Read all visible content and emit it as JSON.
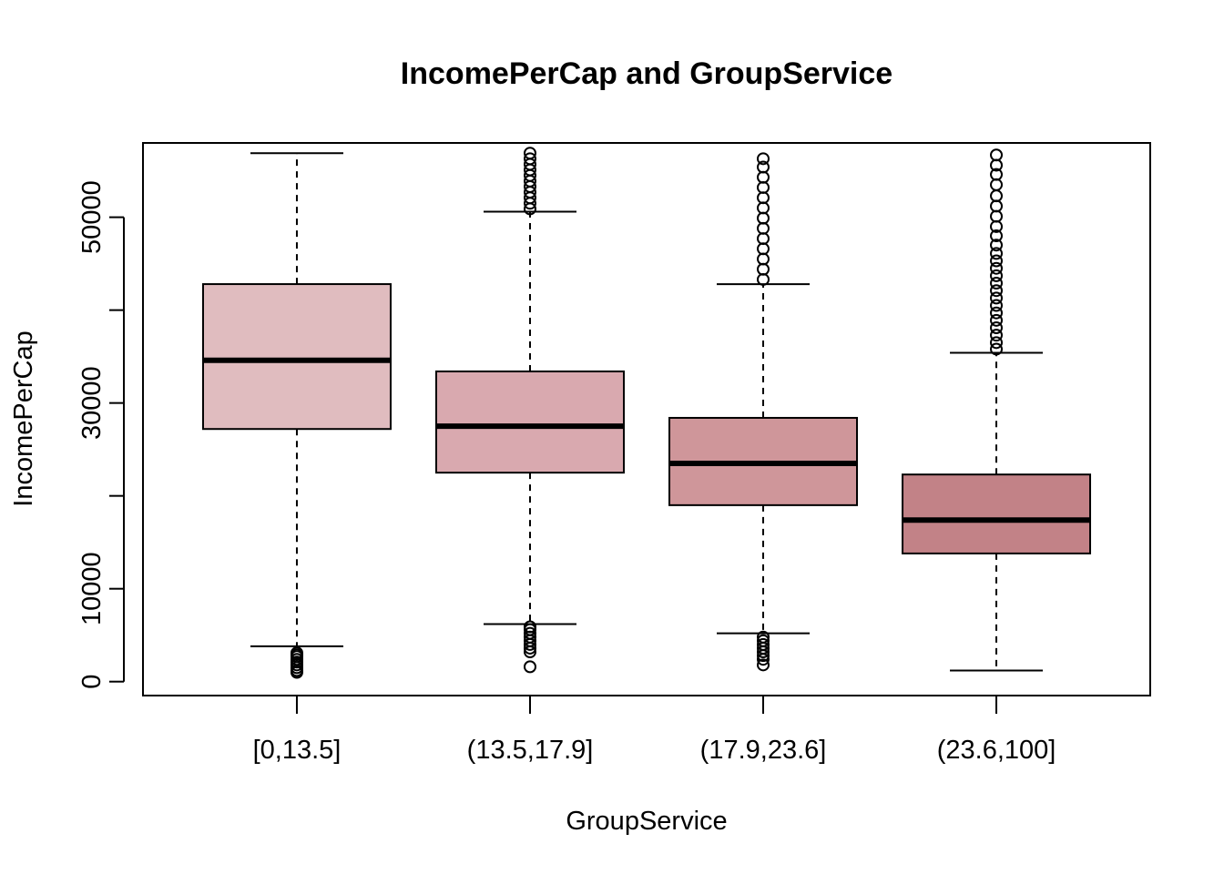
{
  "chart_data": {
    "type": "boxplot",
    "title": "IncomePerCap and GroupService",
    "xlabel": "GroupService",
    "ylabel": "IncomePerCap",
    "categories": [
      "[0,13.5]",
      "(13.5,17.9]",
      "(17.9,23.6]",
      "(23.6,100]"
    ],
    "ylim": [
      -1500,
      58000
    ],
    "yticks": [
      0,
      10000,
      20000,
      30000,
      40000,
      50000
    ],
    "ytick_labels": [
      "0",
      "10000",
      "",
      "30000",
      "",
      "50000"
    ],
    "grid": false,
    "legend": "none",
    "colors": {
      "boxes": [
        "#e0bcbf",
        "#d9a9af",
        "#cf969a",
        "#c28287"
      ],
      "line": "#000000"
    },
    "boxes": [
      {
        "category": "[0,13.5]",
        "whisker_low": 3800,
        "q1": 27200,
        "median": 34600,
        "q3": 42800,
        "whisker_high": 56900,
        "outliers": [
          3100,
          2900,
          2700,
          2400,
          2100,
          1800,
          1500,
          1200,
          1000
        ]
      },
      {
        "category": "(13.5,17.9]",
        "whisker_low": 6200,
        "q1": 22500,
        "median": 27500,
        "q3": 33400,
        "whisker_high": 50600,
        "outliers": [
          1600,
          3200,
          3600,
          4000,
          4400,
          4800,
          5200,
          5600,
          5900,
          50900,
          51500,
          52100,
          52700,
          53300,
          53900,
          54500,
          55100,
          55700,
          56300,
          56900
        ]
      },
      {
        "category": "(17.9,23.6]",
        "whisker_low": 5200,
        "q1": 19000,
        "median": 23500,
        "q3": 28400,
        "whisker_high": 42800,
        "outliers": [
          1800,
          2400,
          2800,
          3200,
          3600,
          4000,
          4400,
          4800,
          43300,
          44400,
          45500,
          46600,
          47700,
          48800,
          49900,
          51000,
          52100,
          53200,
          54300,
          55400,
          56300
        ]
      },
      {
        "category": "(23.6,100]",
        "whisker_low": 1200,
        "q1": 13800,
        "median": 17400,
        "q3": 22300,
        "whisker_high": 35400,
        "outliers": [
          35800,
          36500,
          37300,
          38100,
          38900,
          39700,
          40500,
          41300,
          42100,
          42900,
          43700,
          44500,
          45300,
          46100,
          47000,
          48000,
          49000,
          50100,
          51200,
          52300,
          53500,
          54600,
          55600,
          56700
        ]
      }
    ]
  }
}
